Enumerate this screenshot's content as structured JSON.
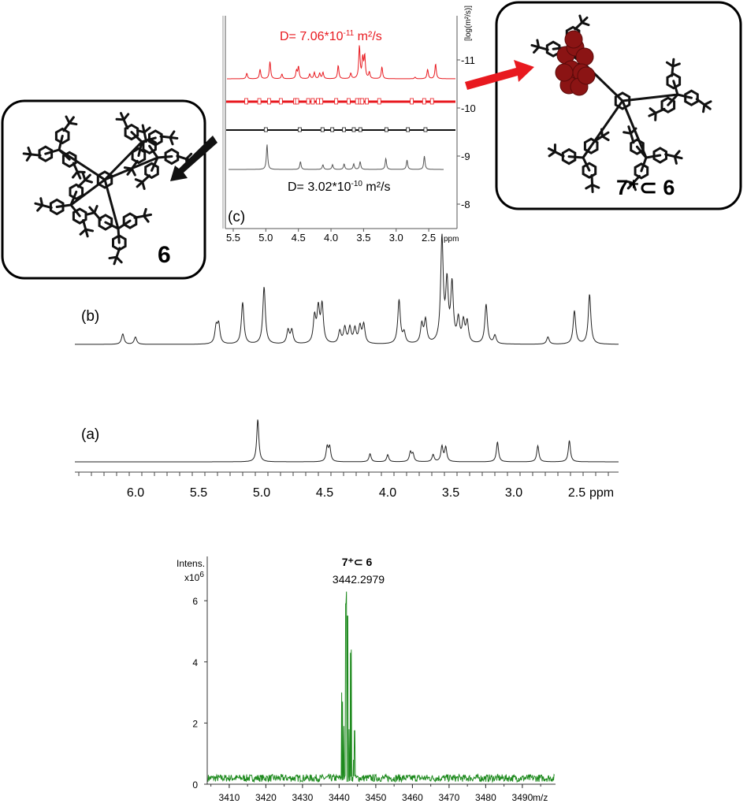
{
  "compound_labels": {
    "host": "6",
    "complex": "7⁺⊂ 6"
  },
  "colors": {
    "guest_red": "#e8191f",
    "ms_green": "#1e8a1e",
    "molecule_dark_red": "#8b1414"
  },
  "chart_data": [
    {
      "type": "line",
      "panel_label": "(c)",
      "xlabel": "ppm",
      "ylabel": "[log(m²/s)]",
      "xlim": [
        5.6,
        2.2
      ],
      "ylim": [
        -11.5,
        -7.6
      ],
      "x_ticks": [
        "5.5",
        "5.0",
        "4.5",
        "4.0",
        "3.5",
        "3.0",
        "2.5"
      ],
      "y_ticks": [
        "-11",
        "-10",
        "-9",
        "-8"
      ],
      "annotations": [
        {
          "text": "D= 7.06*10",
          "sup": "-11",
          "unit": " m²/s",
          "color": "#e8191f"
        },
        {
          "text": "D= 3.02*10",
          "sup": "-10",
          "unit": " m²/s",
          "color": "#000000"
        }
      ],
      "series": [
        {
          "color": "#e8191f",
          "peaks_ppm_height": [
            [
              5.3,
              7
            ],
            [
              5.1,
              12
            ],
            [
              4.95,
              22
            ],
            [
              4.77,
              6
            ],
            [
              4.55,
              10
            ],
            [
              4.52,
              15
            ],
            [
              4.35,
              6
            ],
            [
              4.28,
              8
            ],
            [
              4.2,
              7
            ],
            [
              4.15,
              8
            ],
            [
              3.92,
              17
            ],
            [
              3.73,
              7
            ],
            [
              3.6,
              41
            ],
            [
              3.55,
              25
            ],
            [
              3.52,
              28
            ],
            [
              3.45,
              8
            ],
            [
              3.26,
              15
            ],
            [
              2.76,
              2
            ],
            [
              2.57,
              12
            ],
            [
              2.45,
              19
            ]
          ]
        },
        {
          "color": "#555555",
          "peaks_ppm_height": [
            [
              5.0,
              32
            ],
            [
              4.48,
              10
            ],
            [
              4.13,
              6
            ],
            [
              3.98,
              6
            ],
            [
              3.8,
              7
            ],
            [
              3.65,
              7
            ],
            [
              3.55,
              10
            ],
            [
              3.15,
              14
            ],
            [
              2.82,
              12
            ],
            [
              2.55,
              17
            ]
          ]
        }
      ],
      "diffusion_rows_log": [
        -10.2,
        -9.5
      ]
    },
    {
      "type": "line",
      "xlabel": "ppm",
      "xlim": [
        6.48,
        2.16
      ],
      "x_ticks": [
        "6.0",
        "5.5",
        "5.0",
        "4.5",
        "4.0",
        "3.5",
        "3.0",
        "2.5"
      ],
      "series": [
        {
          "name": "(b)",
          "peaks_ppm_height": [
            [
              6.1,
              0.1
            ],
            [
              6.0,
              0.07
            ],
            [
              5.36,
              0.16
            ],
            [
              5.34,
              0.18
            ],
            [
              5.15,
              0.4
            ],
            [
              4.98,
              0.55
            ],
            [
              4.79,
              0.13
            ],
            [
              4.76,
              0.13
            ],
            [
              4.58,
              0.25
            ],
            [
              4.55,
              0.32
            ],
            [
              4.52,
              0.36
            ],
            [
              4.38,
              0.12
            ],
            [
              4.34,
              0.15
            ],
            [
              4.3,
              0.15
            ],
            [
              4.26,
              0.14
            ],
            [
              4.22,
              0.16
            ],
            [
              4.19,
              0.18
            ],
            [
              3.91,
              0.42
            ],
            [
              3.87,
              0.1
            ],
            [
              3.73,
              0.18
            ],
            [
              3.7,
              0.22
            ],
            [
              3.57,
              1.0
            ],
            [
              3.53,
              0.55
            ],
            [
              3.49,
              0.55
            ],
            [
              3.44,
              0.22
            ],
            [
              3.4,
              0.2
            ],
            [
              3.37,
              0.2
            ],
            [
              3.22,
              0.38
            ],
            [
              3.15,
              0.08
            ],
            [
              2.73,
              0.07
            ],
            [
              2.52,
              0.32
            ],
            [
              2.4,
              0.48
            ]
          ]
        },
        {
          "name": "(a)",
          "peaks_ppm_height": [
            [
              5.03,
              0.9
            ],
            [
              4.48,
              0.3
            ],
            [
              4.46,
              0.3
            ],
            [
              4.14,
              0.17
            ],
            [
              4.0,
              0.15
            ],
            [
              3.82,
              0.2
            ],
            [
              3.8,
              0.16
            ],
            [
              3.64,
              0.15
            ],
            [
              3.57,
              0.32
            ],
            [
              3.54,
              0.3
            ],
            [
              3.13,
              0.42
            ],
            [
              2.81,
              0.34
            ],
            [
              2.56,
              0.45
            ]
          ]
        }
      ]
    },
    {
      "type": "line",
      "title": "7⁺⊂ 6",
      "peak_label": "3442.2979",
      "ylabel": "Intens.",
      "yunit": "x10",
      "yunit_sup": "6",
      "xlabel": "m/z",
      "xlim": [
        3404,
        3499
      ],
      "ylim": [
        0,
        7
      ],
      "x_ticks": [
        "3410",
        "3420",
        "3430",
        "3440",
        "3450",
        "3460",
        "3470",
        "3480",
        "3490"
      ],
      "y_ticks": [
        "0",
        "2",
        "4",
        "6"
      ],
      "color": "#1e8a1e",
      "peaks_mz_intensity": [
        [
          3440.7,
          3.0
        ],
        [
          3440.9,
          2.7
        ],
        [
          3441.3,
          1.9
        ],
        [
          3441.8,
          5.9
        ],
        [
          3442.0,
          6.3
        ],
        [
          3442.3,
          5.5
        ],
        [
          3442.7,
          1.8
        ],
        [
          3443.1,
          4.3
        ],
        [
          3443.3,
          4.4
        ],
        [
          3443.9,
          0.8
        ],
        [
          3444.2,
          1.75
        ]
      ],
      "noise_level": 0.2
    }
  ]
}
